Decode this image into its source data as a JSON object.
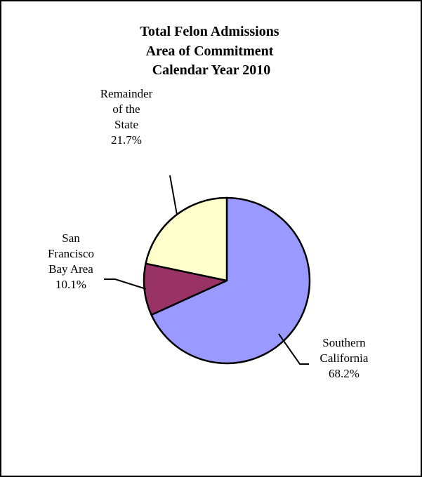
{
  "chart_data": {
    "type": "pie",
    "title": [
      "Total Felon Admissions",
      "Area of Commitment",
      "Calendar Year 2010"
    ],
    "slices": [
      {
        "label": [
          "Southern",
          "California"
        ],
        "value": 68.2,
        "value_label": "68.2%",
        "color": "#9999FF"
      },
      {
        "label": [
          "San",
          "Francisco",
          "Bay Area"
        ],
        "value": 10.1,
        "value_label": "10.1%",
        "color": "#993366"
      },
      {
        "label": [
          "Remainder",
          "of the",
          "State"
        ],
        "value": 21.7,
        "value_label": "21.7%",
        "color": "#FFFFCC"
      }
    ],
    "start": "12 o'clock",
    "direction": "clockwise",
    "legend": "none",
    "grid": false
  }
}
